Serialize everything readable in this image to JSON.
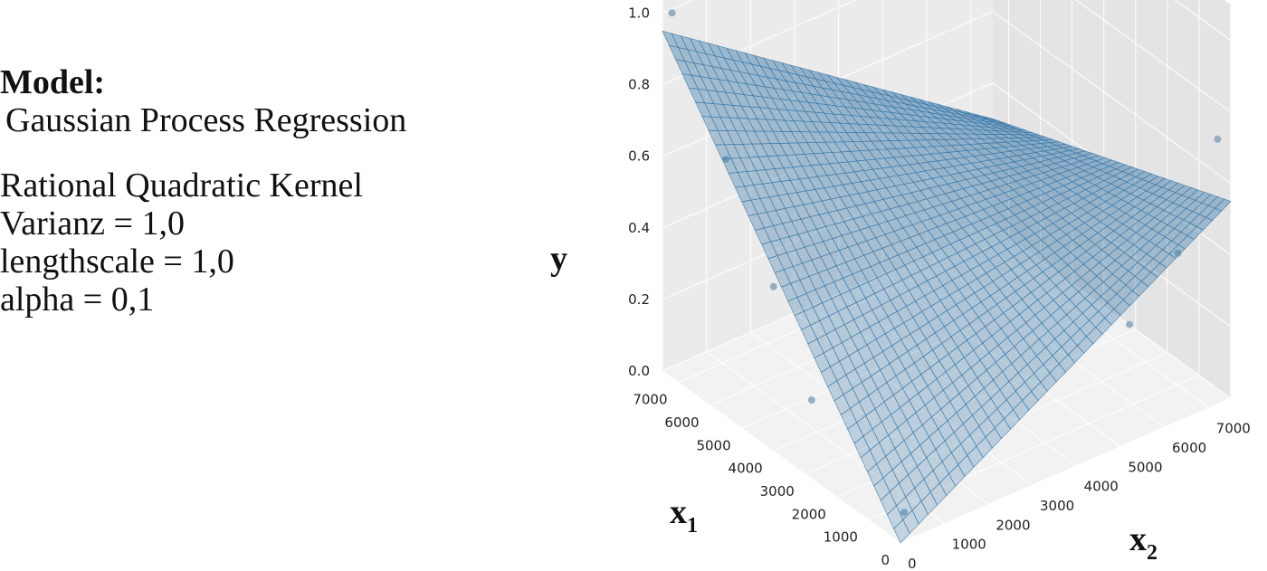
{
  "info": {
    "heading": "Model:",
    "model": "Gaussian Process Regression",
    "kernel": "Rational Quadratic Kernel",
    "variance": "Varianz = 1,0",
    "lengthscale": "lengthscale = 1,0",
    "alpha": "alpha = 0,1"
  },
  "chart_data": {
    "type": "surface3d",
    "title": "",
    "x1label": {
      "main": "x",
      "sub": "1"
    },
    "x2label": {
      "main": "x",
      "sub": "2"
    },
    "ylabel": "y",
    "x1lim": [
      0,
      7500
    ],
    "x2lim": [
      0,
      7500
    ],
    "ylim": [
      0,
      1.1
    ],
    "x1ticks": [
      "0",
      "1000",
      "2000",
      "3000",
      "4000",
      "5000",
      "6000",
      "7000"
    ],
    "x2ticks": [
      "0",
      "1000",
      "2000",
      "3000",
      "4000",
      "5000",
      "6000",
      "7000"
    ],
    "yticks": [
      "0.0",
      "0.2",
      "0.4",
      "0.6",
      "0.8",
      "1.0"
    ],
    "grid": true,
    "surface_color": "#3a78a8",
    "surface_corners": {
      "x1_0_x2_0": 0.0,
      "x1_max_x2_0": 0.95,
      "x1_0_x2_max": 0.55,
      "x1_max_x2_max": 0.3
    },
    "scatter": [
      {
        "x1": 7200,
        "x2": 0,
        "y": 1.02
      },
      {
        "x1": 5500,
        "x2": 0,
        "y": 0.72
      },
      {
        "x1": 4000,
        "x2": 0,
        "y": 0.46
      },
      {
        "x1": 2800,
        "x2": 0,
        "y": 0.22
      },
      {
        "x1": 300,
        "x2": 300,
        "y": 0.05
      },
      {
        "x1": 0,
        "x2": 5200,
        "y": 0.33
      },
      {
        "x1": 0,
        "x2": 6300,
        "y": 0.47
      },
      {
        "x1": 0,
        "x2": 7200,
        "y": 0.74
      }
    ]
  }
}
